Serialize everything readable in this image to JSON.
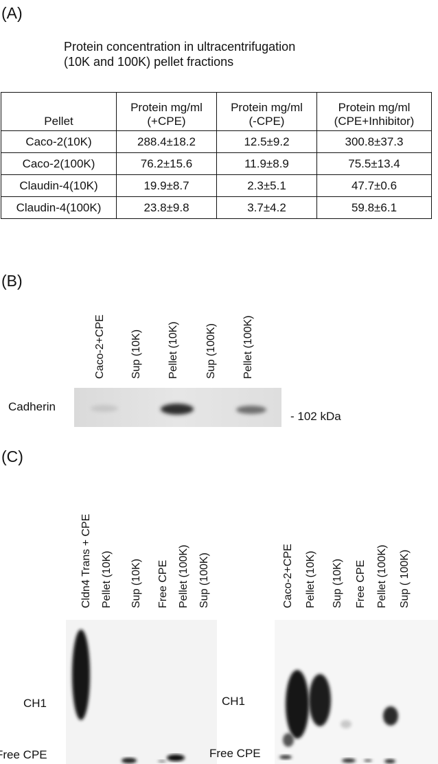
{
  "panel_a": {
    "label": "(A)",
    "subtitle_line1": "Protein concentration in ultracentrifugation",
    "subtitle_line2": "(10K and 100K) pellet fractions",
    "table": {
      "headers": [
        [
          "Pellet"
        ],
        [
          "Protein mg/ml",
          "(+CPE)"
        ],
        [
          "Protein mg/ml",
          "(-CPE)"
        ],
        [
          "Protein mg/ml",
          "(CPE+Inhibitor)"
        ]
      ],
      "rows": [
        [
          "Caco-2(10K)",
          "288.4±18.2",
          "12.5±9.2",
          "300.8±37.3"
        ],
        [
          "Caco-2(100K)",
          "76.2±15.6",
          "11.9±8.9",
          "75.5±13.4"
        ],
        [
          "Claudin-4(10K)",
          "19.9±8.7",
          "2.3±5.1",
          "47.7±0.6"
        ],
        [
          "Claudin-4(100K)",
          "23.8±9.8",
          "3.7±4.2",
          "59.8±6.1"
        ]
      ]
    }
  },
  "panel_b": {
    "label": "(B)",
    "lanes": [
      "Caco-2+CPE",
      "Sup (10K)",
      "Pellet (10K)",
      "Sup (100K)",
      "Pellet (100K)"
    ],
    "band_label": "Cadherin",
    "marker": "- 102 kDa"
  },
  "panel_c": {
    "label": "(C)",
    "left_lanes": [
      "Cldn4 Trans + CPE",
      "Pellet (10K)",
      "Sup (10K)",
      "Free CPE",
      "Pellet  (100K)",
      "Sup (100K)"
    ],
    "right_lanes": [
      "Caco-2+CPE",
      "Pellet (10K)",
      "Sup (10K)",
      "Free CPE",
      "Pellet  (100K)",
      "Sup ( 100K)"
    ],
    "left_ch1": "CH1",
    "left_free": "Free CPE",
    "right_ch1": "CH1",
    "right_free": "Free CPE"
  }
}
